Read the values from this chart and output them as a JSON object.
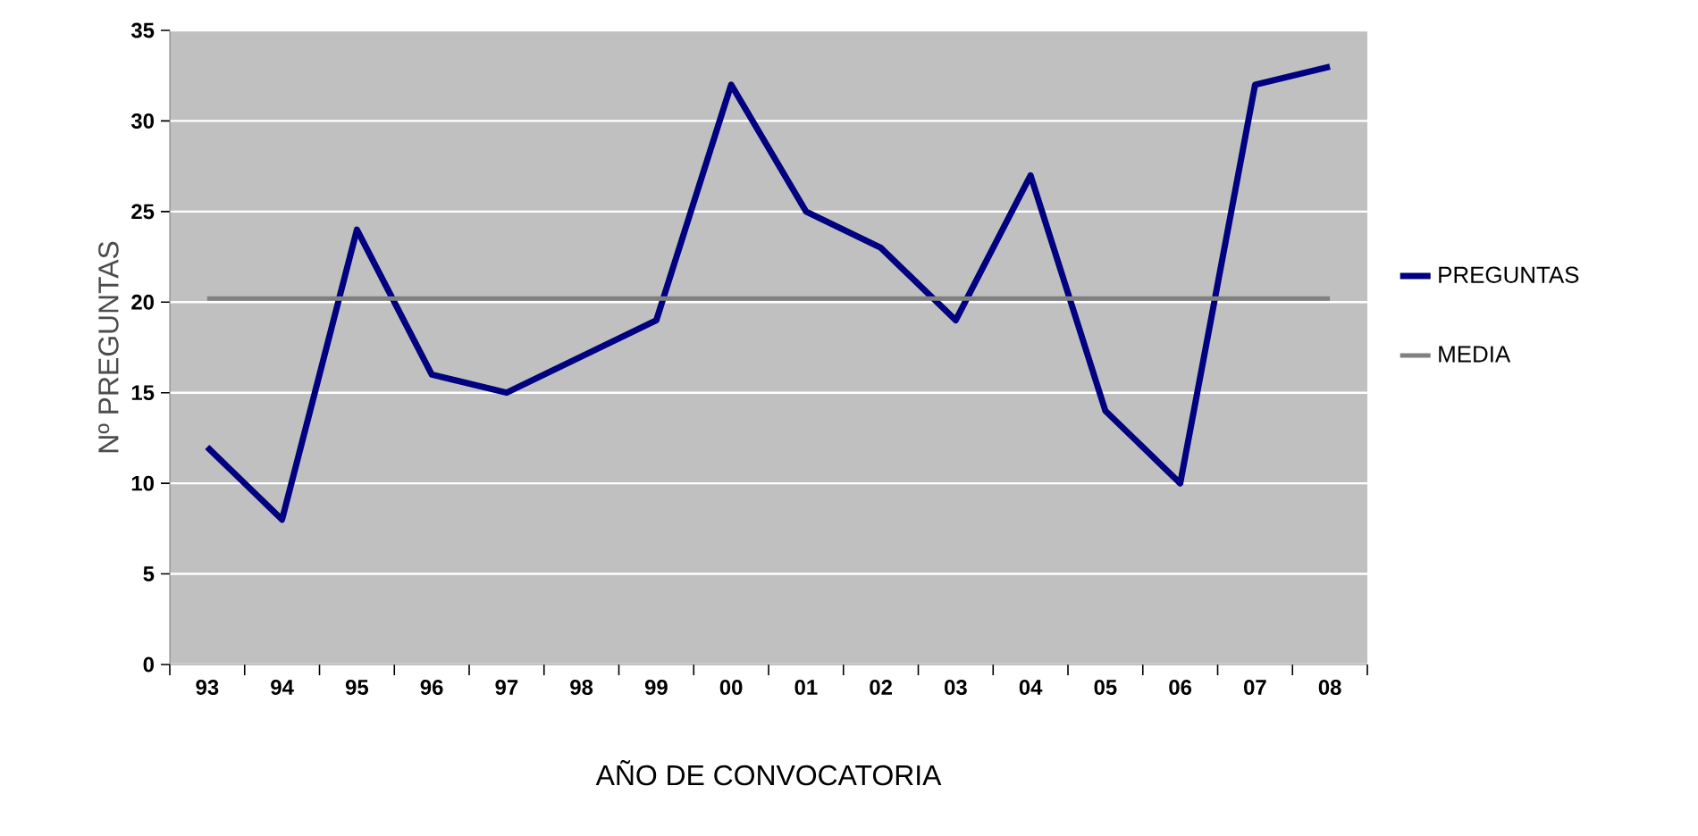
{
  "chart_data": {
    "type": "line",
    "xlabel": "AÑO DE CONVOCATORIA",
    "ylabel": "Nº PREGUNTAS",
    "categories": [
      "93",
      "94",
      "95",
      "96",
      "97",
      "98",
      "99",
      "00",
      "01",
      "02",
      "03",
      "04",
      "05",
      "06",
      "07",
      "08"
    ],
    "series": [
      {
        "name": "PREGUNTAS",
        "color": "#000080",
        "values": [
          12,
          8,
          24,
          16,
          15,
          17,
          19,
          32,
          25,
          23,
          19,
          27,
          14,
          10,
          32,
          33
        ]
      },
      {
        "name": "MEDIA",
        "color": "#808080",
        "values": [
          20.2,
          20.2,
          20.2,
          20.2,
          20.2,
          20.2,
          20.2,
          20.2,
          20.2,
          20.2,
          20.2,
          20.2,
          20.2,
          20.2,
          20.2,
          20.2
        ]
      }
    ],
    "ylim": [
      0,
      35
    ],
    "yticks": [
      0,
      5,
      10,
      15,
      20,
      25,
      30,
      35
    ],
    "grid": "y",
    "legend": "right",
    "marker": "none",
    "line_style": "solid"
  }
}
